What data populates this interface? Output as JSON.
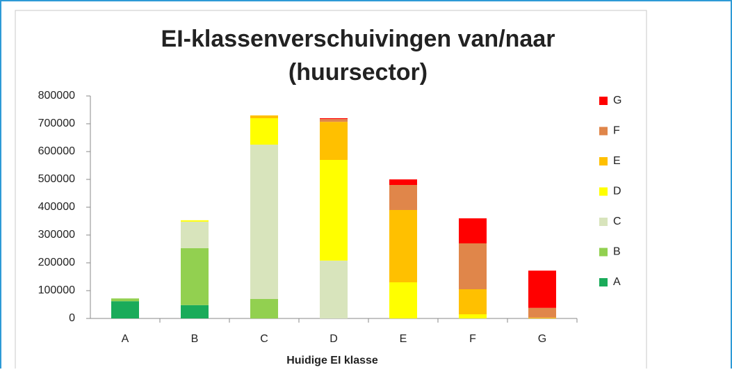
{
  "chart_data": {
    "type": "stacked-bar",
    "title": [
      "EI-klassenverschuivingen van/naar",
      "(huursector)"
    ],
    "x_label": "Huidige EI klasse",
    "categories": [
      "A",
      "B",
      "C",
      "D",
      "E",
      "F",
      "G"
    ],
    "series": [
      {
        "name": "A",
        "color": "#1aab5a",
        "values": [
          62000,
          48000,
          0,
          0,
          0,
          0,
          0
        ]
      },
      {
        "name": "B",
        "color": "#92d050",
        "values": [
          10000,
          205000,
          70000,
          0,
          0,
          0,
          0
        ]
      },
      {
        "name": "C",
        "color": "#d8e4bc",
        "values": [
          0,
          95000,
          555000,
          208000,
          0,
          0,
          0
        ]
      },
      {
        "name": "D",
        "color": "#ffff00",
        "values": [
          0,
          5000,
          95000,
          362000,
          130000,
          15000,
          0
        ]
      },
      {
        "name": "E",
        "color": "#ffc000",
        "values": [
          0,
          0,
          10000,
          137000,
          260000,
          90000,
          3000
        ]
      },
      {
        "name": "F",
        "color": "#e0864a",
        "values": [
          0,
          0,
          0,
          10000,
          90000,
          165000,
          35000
        ]
      },
      {
        "name": "G",
        "color": "#ff0000",
        "values": [
          0,
          0,
          0,
          3000,
          20000,
          90000,
          134000
        ]
      }
    ],
    "ylim": [
      0,
      800000
    ],
    "yticks": [
      0,
      100000,
      200000,
      300000,
      400000,
      500000,
      600000,
      700000,
      800000
    ]
  }
}
